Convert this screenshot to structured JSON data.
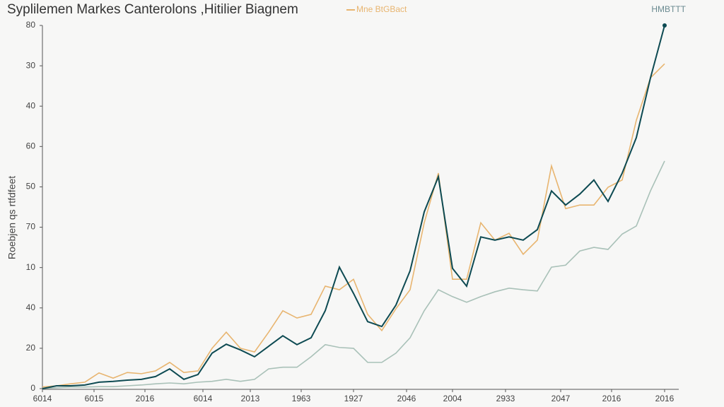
{
  "chart_data": {
    "type": "line",
    "title": "Syplilemen Markes Canterolons ,Hitilier Biagnem",
    "y_label": "Roebjen qs rtfdfeet",
    "x": [
      0,
      2,
      4,
      6,
      8,
      10,
      12,
      14,
      16,
      18,
      20,
      22,
      24,
      26,
      28,
      30,
      32,
      34,
      36,
      38,
      40,
      42,
      44,
      46,
      48,
      50,
      52,
      54,
      56,
      58,
      60,
      62,
      64,
      66,
      68,
      70,
      72,
      74,
      76,
      78,
      80,
      82,
      84,
      86,
      88
    ],
    "xlim": [
      0,
      88
    ],
    "xticks": [
      {
        "value": 0,
        "label": "6014"
      },
      {
        "value": 7.3,
        "label": "6015"
      },
      {
        "value": 14.5,
        "label": "2016"
      },
      {
        "value": 22.7,
        "label": "6014"
      },
      {
        "value": 29.4,
        "label": "2013"
      },
      {
        "value": 36.6,
        "label": "1963"
      },
      {
        "value": 44,
        "label": "1927"
      },
      {
        "value": 51.5,
        "label": "2046"
      },
      {
        "value": 58,
        "label": "2004"
      },
      {
        "value": 65.5,
        "label": "2933"
      },
      {
        "value": 73.3,
        "label": "2047"
      },
      {
        "value": 80.5,
        "label": "2016"
      },
      {
        "value": 88,
        "label": "2016"
      }
    ],
    "ylim": [
      0,
      90
    ],
    "yticks": [
      0,
      {
        "value": 10,
        "label": "20"
      },
      {
        "value": 20,
        "label": "40"
      },
      {
        "value": 30,
        "label": "10"
      },
      {
        "value": 40,
        "label": "70"
      },
      {
        "value": 50,
        "label": "50"
      },
      {
        "value": 60,
        "label": "60"
      },
      {
        "value": 70,
        "label": "40"
      },
      {
        "value": 80,
        "label": "30"
      },
      {
        "value": 90,
        "label": "80"
      }
    ],
    "legend": "top-right",
    "series": [
      {
        "name": "HMBTTT",
        "color": "#0d4a52",
        "values": [
          0,
          0.7,
          0.7,
          0.9,
          1.6,
          1.8,
          2.1,
          2.3,
          3.0,
          4.9,
          2.3,
          3.5,
          8.8,
          11.0,
          9.6,
          7.9,
          10.5,
          13.1,
          10.9,
          12.6,
          19.3,
          30.1,
          23.6,
          16.6,
          15.4,
          20.7,
          29.2,
          43.8,
          52.5,
          29.8,
          25.4,
          37.6,
          36.8,
          37.6,
          36.8,
          39.4,
          49.0,
          45.5,
          48.2,
          51.7,
          46.4,
          53.4,
          62.2,
          77.0,
          90.0
        ]
      },
      {
        "name": "Mne BtGBact",
        "color": "#e8b570",
        "values": [
          0.4,
          0.7,
          1.2,
          1.6,
          3.9,
          2.6,
          4.0,
          3.7,
          4.4,
          6.5,
          4.0,
          4.4,
          10.0,
          14.0,
          10.0,
          9.1,
          14.0,
          19.3,
          17.5,
          18.4,
          25.4,
          24.5,
          27.1,
          18.4,
          14.4,
          19.8,
          24.5,
          41.1,
          53.4,
          27.1,
          27.1,
          41.1,
          36.8,
          38.5,
          33.3,
          36.8,
          55.2,
          44.6,
          45.5,
          45.5,
          49.9,
          51.7,
          66.5,
          77.0,
          80.5
        ]
      },
      {
        "color": "#a9c1b8",
        "values": [
          0,
          0.2,
          0.4,
          0.4,
          0.5,
          0.5,
          0.7,
          0.9,
          1.2,
          1.4,
          1.2,
          1.6,
          1.8,
          2.3,
          1.8,
          2.3,
          4.9,
          5.3,
          5.3,
          7.9,
          10.9,
          10.2,
          10.0,
          6.5,
          6.5,
          8.8,
          12.6,
          19.3,
          24.5,
          22.8,
          21.4,
          22.8,
          24.0,
          24.9,
          24.5,
          24.2,
          30.1,
          30.6,
          34.1,
          35.0,
          34.5,
          38.3,
          40.3,
          49.0,
          56.4
        ]
      }
    ]
  }
}
